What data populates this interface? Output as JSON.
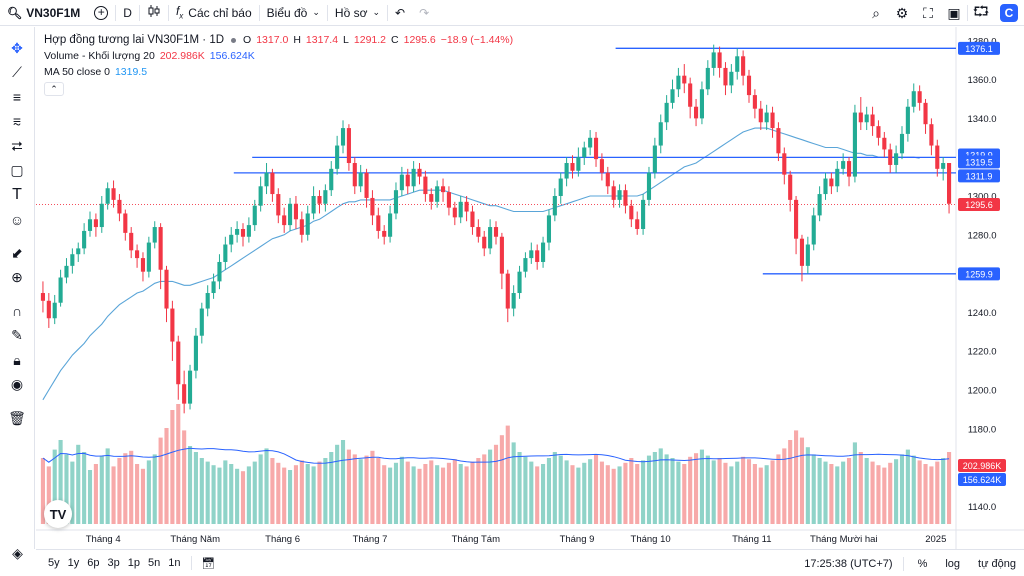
{
  "toolbar": {
    "symbol": "VN30F1M",
    "add_icon": "plus-circle-icon",
    "interval": "D",
    "indicators_label": "Các chỉ báo",
    "chart_type_label": "Biểu đồ",
    "profile_label": "Hồ sơ"
  },
  "legend": {
    "title": "Hợp đồng tương lai VN30F1M · 1D",
    "open_label": "O",
    "open": "1317.0",
    "high_label": "H",
    "high": "1317.4",
    "low_label": "L",
    "low": "1291.2",
    "close_label": "C",
    "close": "1295.6",
    "change": "−18.9 (−1.44%)",
    "volume_label": "Volume - Khối lượng 20",
    "volume_value": "202.986K",
    "volume_ma": "156.624K",
    "ma_label": "MA 50 close 0",
    "ma_value": "1319.5"
  },
  "bottombar": {
    "ranges": [
      "5y",
      "1y",
      "6p",
      "3p",
      "1p",
      "5n",
      "1n"
    ],
    "time": "17:25:38 (UTC+7)",
    "percent": "%",
    "log": "log",
    "auto": "tự động"
  },
  "colors": {
    "up": "#22ab94",
    "down": "#f23645",
    "ma": "#5aa5d8",
    "hline": "#2962ff",
    "up_vol": "#8fd3c8",
    "down_vol": "#f7a9a9"
  },
  "chart_data": {
    "type": "candlestick",
    "price_ticks": [
      1380,
      1360,
      1340,
      1320,
      1300,
      1280,
      1260,
      1240,
      1220,
      1200,
      1180,
      1160,
      1140
    ],
    "price_range": [
      1132,
      1384
    ],
    "month_labels": [
      "Tháng 4",
      "Tháng Năm",
      "Tháng 6",
      "Tháng 7",
      "Tháng Tám",
      "Tháng 9",
      "Tháng 10",
      "Tháng 11",
      "Tháng Mười hai",
      "2025"
    ],
    "month_positions": [
      0.06,
      0.16,
      0.255,
      0.35,
      0.465,
      0.575,
      0.655,
      0.765,
      0.865,
      0.965
    ],
    "candles": [
      [
        1250,
        1246,
        1256,
        1240
      ],
      [
        1246,
        1237,
        1250,
        1232
      ],
      [
        1237,
        1245,
        1249,
        1234
      ],
      [
        1245,
        1258,
        1262,
        1243
      ],
      [
        1258,
        1264,
        1268,
        1255
      ],
      [
        1264,
        1270,
        1273,
        1260
      ],
      [
        1270,
        1273,
        1276,
        1266
      ],
      [
        1273,
        1282,
        1286,
        1270
      ],
      [
        1282,
        1288,
        1292,
        1279
      ],
      [
        1288,
        1284,
        1291,
        1279
      ],
      [
        1284,
        1296,
        1300,
        1281
      ],
      [
        1296,
        1304,
        1307,
        1293
      ],
      [
        1304,
        1298,
        1308,
        1294
      ],
      [
        1298,
        1291,
        1301,
        1287
      ],
      [
        1291,
        1281,
        1293,
        1277
      ],
      [
        1281,
        1272,
        1284,
        1268
      ],
      [
        1272,
        1268,
        1275,
        1263
      ],
      [
        1268,
        1261,
        1271,
        1256
      ],
      [
        1261,
        1276,
        1279,
        1258
      ],
      [
        1276,
        1284,
        1287,
        1273
      ],
      [
        1284,
        1262,
        1286,
        1252
      ],
      [
        1262,
        1242,
        1264,
        1235
      ],
      [
        1242,
        1225,
        1246,
        1215
      ],
      [
        1225,
        1203,
        1228,
        1195
      ],
      [
        1203,
        1193,
        1210,
        1188
      ],
      [
        1193,
        1210,
        1213,
        1190
      ],
      [
        1210,
        1228,
        1232,
        1206
      ],
      [
        1228,
        1242,
        1245,
        1224
      ],
      [
        1242,
        1250,
        1254,
        1238
      ],
      [
        1250,
        1256,
        1260,
        1247
      ],
      [
        1256,
        1266,
        1270,
        1252
      ],
      [
        1266,
        1275,
        1279,
        1262
      ],
      [
        1275,
        1280,
        1284,
        1271
      ],
      [
        1280,
        1283,
        1287,
        1276
      ],
      [
        1283,
        1279,
        1286,
        1274
      ],
      [
        1279,
        1285,
        1289,
        1276
      ],
      [
        1285,
        1295,
        1298,
        1282
      ],
      [
        1295,
        1305,
        1310,
        1292
      ],
      [
        1305,
        1312,
        1317,
        1301
      ],
      [
        1312,
        1301,
        1314,
        1297
      ],
      [
        1301,
        1290,
        1304,
        1286
      ],
      [
        1290,
        1285,
        1294,
        1281
      ],
      [
        1285,
        1296,
        1299,
        1282
      ],
      [
        1296,
        1288,
        1300,
        1283
      ],
      [
        1288,
        1280,
        1292,
        1276
      ],
      [
        1280,
        1291,
        1295,
        1277
      ],
      [
        1291,
        1300,
        1305,
        1288
      ],
      [
        1300,
        1296,
        1303,
        1291
      ],
      [
        1296,
        1303,
        1306,
        1292
      ],
      [
        1303,
        1314,
        1318,
        1300
      ],
      [
        1314,
        1326,
        1331,
        1311
      ],
      [
        1326,
        1335,
        1339,
        1322
      ],
      [
        1335,
        1317,
        1337,
        1313
      ],
      [
        1317,
        1305,
        1320,
        1301
      ],
      [
        1305,
        1312,
        1316,
        1302
      ],
      [
        1312,
        1299,
        1314,
        1294
      ],
      [
        1299,
        1290,
        1303,
        1285
      ],
      [
        1290,
        1282,
        1294,
        1278
      ],
      [
        1282,
        1279,
        1285,
        1275
      ],
      [
        1279,
        1291,
        1295,
        1276
      ],
      [
        1291,
        1303,
        1307,
        1288
      ],
      [
        1303,
        1311,
        1315,
        1300
      ],
      [
        1311,
        1305,
        1314,
        1301
      ],
      [
        1305,
        1314,
        1318,
        1302
      ],
      [
        1314,
        1310,
        1317,
        1306
      ],
      [
        1310,
        1301,
        1313,
        1297
      ],
      [
        1301,
        1297,
        1304,
        1293
      ],
      [
        1297,
        1305,
        1308,
        1294
      ],
      [
        1305,
        1302,
        1309,
        1297
      ],
      [
        1302,
        1294,
        1305,
        1290
      ],
      [
        1294,
        1289,
        1297,
        1285
      ],
      [
        1289,
        1297,
        1300,
        1286
      ],
      [
        1297,
        1292,
        1300,
        1287
      ],
      [
        1292,
        1284,
        1295,
        1280
      ],
      [
        1284,
        1279,
        1288,
        1276
      ],
      [
        1279,
        1273,
        1282,
        1269
      ],
      [
        1273,
        1284,
        1288,
        1270
      ],
      [
        1284,
        1279,
        1287,
        1275
      ],
      [
        1279,
        1260,
        1281,
        1252
      ],
      [
        1260,
        1242,
        1262,
        1235
      ],
      [
        1242,
        1250,
        1254,
        1238
      ],
      [
        1250,
        1261,
        1264,
        1247
      ],
      [
        1261,
        1268,
        1271,
        1258
      ],
      [
        1268,
        1272,
        1276,
        1265
      ],
      [
        1272,
        1266,
        1275,
        1262
      ],
      [
        1266,
        1276,
        1279,
        1263
      ],
      [
        1276,
        1290,
        1293,
        1272
      ],
      [
        1290,
        1300,
        1304,
        1287
      ],
      [
        1300,
        1309,
        1312,
        1296
      ],
      [
        1309,
        1317,
        1320,
        1305
      ],
      [
        1317,
        1313,
        1321,
        1309
      ],
      [
        1313,
        1320,
        1325,
        1310
      ],
      [
        1320,
        1325,
        1328,
        1316
      ],
      [
        1325,
        1330,
        1334,
        1321
      ],
      [
        1330,
        1319,
        1333,
        1315
      ],
      [
        1319,
        1312,
        1322,
        1308
      ],
      [
        1312,
        1305,
        1315,
        1301
      ],
      [
        1305,
        1298,
        1308,
        1294
      ],
      [
        1298,
        1303,
        1306,
        1294
      ],
      [
        1303,
        1295,
        1306,
        1291
      ],
      [
        1295,
        1288,
        1298,
        1284
      ],
      [
        1288,
        1283,
        1292,
        1280
      ],
      [
        1283,
        1298,
        1301,
        1280
      ],
      [
        1298,
        1312,
        1315,
        1295
      ],
      [
        1312,
        1326,
        1330,
        1309
      ],
      [
        1326,
        1338,
        1342,
        1322
      ],
      [
        1338,
        1348,
        1352,
        1334
      ],
      [
        1348,
        1355,
        1360,
        1345
      ],
      [
        1355,
        1362,
        1366,
        1351
      ],
      [
        1362,
        1358,
        1368,
        1353
      ],
      [
        1358,
        1346,
        1361,
        1340
      ],
      [
        1346,
        1340,
        1350,
        1336
      ],
      [
        1340,
        1355,
        1359,
        1337
      ],
      [
        1355,
        1366,
        1370,
        1352
      ],
      [
        1366,
        1374,
        1378,
        1362
      ],
      [
        1374,
        1366,
        1377,
        1361
      ],
      [
        1366,
        1357,
        1369,
        1352
      ],
      [
        1357,
        1364,
        1368,
        1353
      ],
      [
        1364,
        1372,
        1376,
        1360
      ],
      [
        1372,
        1362,
        1375,
        1357
      ],
      [
        1362,
        1352,
        1365,
        1348
      ],
      [
        1352,
        1345,
        1355,
        1340
      ],
      [
        1345,
        1338,
        1349,
        1334
      ],
      [
        1338,
        1343,
        1347,
        1334
      ],
      [
        1343,
        1335,
        1346,
        1330
      ],
      [
        1335,
        1322,
        1338,
        1318
      ],
      [
        1322,
        1311,
        1325,
        1306
      ],
      [
        1311,
        1298,
        1313,
        1292
      ],
      [
        1298,
        1278,
        1300,
        1270
      ],
      [
        1278,
        1264,
        1280,
        1256
      ],
      [
        1264,
        1275,
        1279,
        1260
      ],
      [
        1275,
        1290,
        1294,
        1272
      ],
      [
        1290,
        1301,
        1305,
        1287
      ],
      [
        1301,
        1309,
        1312,
        1298
      ],
      [
        1309,
        1305,
        1312,
        1301
      ],
      [
        1305,
        1314,
        1318,
        1302
      ],
      [
        1314,
        1318,
        1322,
        1311
      ],
      [
        1318,
        1310,
        1320,
        1305
      ],
      [
        1310,
        1343,
        1347,
        1307
      ],
      [
        1343,
        1338,
        1351,
        1334
      ],
      [
        1338,
        1342,
        1346,
        1334
      ],
      [
        1342,
        1336,
        1346,
        1331
      ],
      [
        1336,
        1330,
        1339,
        1326
      ],
      [
        1330,
        1324,
        1333,
        1320
      ],
      [
        1324,
        1316,
        1327,
        1312
      ],
      [
        1316,
        1322,
        1326,
        1312
      ],
      [
        1322,
        1332,
        1336,
        1319
      ],
      [
        1332,
        1346,
        1350,
        1328
      ],
      [
        1346,
        1354,
        1358,
        1343
      ],
      [
        1354,
        1348,
        1357,
        1344
      ],
      [
        1348,
        1337,
        1350,
        1332
      ],
      [
        1337,
        1326,
        1340,
        1321
      ],
      [
        1326,
        1314,
        1329,
        1310
      ],
      [
        1314,
        1317,
        1320,
        1308
      ],
      [
        1317,
        1296,
        1317,
        1291
      ]
    ],
    "volumes": [
      0.55,
      0.48,
      0.62,
      0.7,
      0.58,
      0.52,
      0.66,
      0.6,
      0.45,
      0.5,
      0.57,
      0.63,
      0.48,
      0.55,
      0.59,
      0.61,
      0.5,
      0.46,
      0.53,
      0.58,
      0.72,
      0.8,
      0.95,
      1.0,
      0.78,
      0.65,
      0.6,
      0.55,
      0.52,
      0.49,
      0.47,
      0.53,
      0.5,
      0.46,
      0.44,
      0.48,
      0.52,
      0.58,
      0.63,
      0.55,
      0.51,
      0.47,
      0.45,
      0.49,
      0.53,
      0.5,
      0.48,
      0.52,
      0.55,
      0.6,
      0.66,
      0.7,
      0.62,
      0.58,
      0.54,
      0.57,
      0.61,
      0.55,
      0.49,
      0.47,
      0.51,
      0.56,
      0.52,
      0.48,
      0.46,
      0.5,
      0.53,
      0.49,
      0.47,
      0.51,
      0.54,
      0.5,
      0.48,
      0.52,
      0.55,
      0.58,
      0.62,
      0.66,
      0.74,
      0.82,
      0.68,
      0.6,
      0.56,
      0.52,
      0.48,
      0.5,
      0.55,
      0.6,
      0.57,
      0.53,
      0.49,
      0.47,
      0.51,
      0.54,
      0.58,
      0.52,
      0.49,
      0.46,
      0.48,
      0.51,
      0.55,
      0.5,
      0.53,
      0.57,
      0.6,
      0.63,
      0.58,
      0.55,
      0.52,
      0.5,
      0.56,
      0.59,
      0.62,
      0.57,
      0.53,
      0.55,
      0.51,
      0.48,
      0.52,
      0.56,
      0.54,
      0.5,
      0.47,
      0.49,
      0.53,
      0.58,
      0.63,
      0.7,
      0.78,
      0.72,
      0.64,
      0.58,
      0.55,
      0.52,
      0.5,
      0.48,
      0.52,
      0.55,
      0.68,
      0.6,
      0.55,
      0.52,
      0.49,
      0.47,
      0.51,
      0.54,
      0.58,
      0.62,
      0.57,
      0.53,
      0.5,
      0.48,
      0.52,
      0.55,
      0.6
    ],
    "ma50": [
      1195,
      1200,
      1205,
      1210,
      1214,
      1218,
      1221,
      1224,
      1228,
      1231,
      1234,
      1238,
      1241,
      1244,
      1246,
      1248,
      1250,
      1251,
      1253,
      1255,
      1256,
      1256,
      1256,
      1255,
      1254,
      1254,
      1255,
      1256,
      1257,
      1258,
      1260,
      1262,
      1264,
      1266,
      1268,
      1270,
      1272,
      1274,
      1276,
      1278,
      1279,
      1280,
      1282,
      1283,
      1284,
      1285,
      1287,
      1288,
      1290,
      1292,
      1294,
      1296,
      1297,
      1297,
      1298,
      1298,
      1298,
      1298,
      1298,
      1298,
      1299,
      1300,
      1301,
      1302,
      1303,
      1303,
      1303,
      1303,
      1303,
      1302,
      1301,
      1300,
      1299,
      1298,
      1297,
      1296,
      1295,
      1295,
      1294,
      1293,
      1292,
      1292,
      1292,
      1292,
      1292,
      1292,
      1293,
      1294,
      1295,
      1296,
      1297,
      1298,
      1299,
      1300,
      1300,
      1300,
      1300,
      1300,
      1300,
      1300,
      1300,
      1300,
      1301,
      1303,
      1305,
      1307,
      1309,
      1311,
      1313,
      1315,
      1316,
      1317,
      1319,
      1321,
      1323,
      1325,
      1327,
      1329,
      1331,
      1333,
      1334,
      1335,
      1335,
      1335,
      1334,
      1333,
      1332,
      1331,
      1330,
      1329,
      1328,
      1327,
      1326,
      1325,
      1325,
      1325,
      1324,
      1323,
      1322,
      1322,
      1321,
      1321,
      1320,
      1320,
      1320,
      1320,
      1320,
      1320,
      1320,
      1319.5
    ],
    "hlines": [
      {
        "price": 1376.1,
        "label": "1376.1",
        "from": 0.63
      },
      {
        "price": 1319.9,
        "label": "1319.9",
        "from": 0.235
      },
      {
        "price": 1319.5,
        "label": "1319.5",
        "from": null
      },
      {
        "price": 1311.9,
        "label": "1311.9",
        "from": 0.215
      },
      {
        "price": 1259.9,
        "label": "1259.9",
        "from": 0.79
      }
    ],
    "last_price": {
      "price": 1295.6,
      "label": "1295.6"
    },
    "vol_labels": [
      {
        "label": "202.986K",
        "color": "#f23645"
      },
      {
        "label": "156.624K",
        "color": "#2962ff"
      }
    ]
  }
}
